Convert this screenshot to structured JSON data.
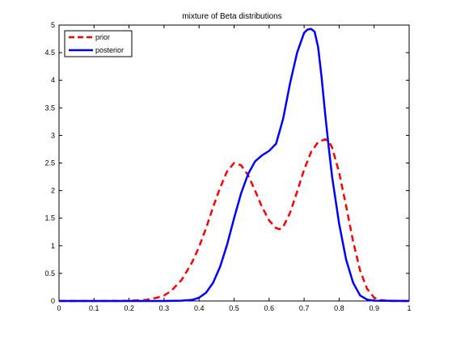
{
  "chart_data": {
    "type": "line",
    "title": "mixture of Beta distributions",
    "xlabel": "",
    "ylabel": "",
    "xlim": [
      0,
      1
    ],
    "ylim": [
      0,
      5
    ],
    "xticks": [
      0,
      0.1,
      0.2,
      0.3,
      0.4,
      0.5,
      0.6,
      0.7,
      0.8,
      0.9,
      1
    ],
    "xtick_labels": [
      "0",
      "0.1",
      "0.2",
      "0.3",
      "0.4",
      "0.5",
      "0.6",
      "0.7",
      "0.8",
      "0.9",
      "1"
    ],
    "yticks": [
      0,
      0.5,
      1,
      1.5,
      2,
      2.5,
      3,
      3.5,
      4,
      4.5,
      5
    ],
    "ytick_labels": [
      "0",
      "0.5",
      "1",
      "1.5",
      "2",
      "2.5",
      "3",
      "3.5",
      "4",
      "4.5",
      "5"
    ],
    "grid": false,
    "legend_position": "top-left",
    "series": [
      {
        "name": "prior",
        "color": "#ff0000",
        "style": "dashed",
        "x": [
          0,
          0.1,
          0.2,
          0.25,
          0.28,
          0.3,
          0.32,
          0.35,
          0.38,
          0.4,
          0.42,
          0.44,
          0.46,
          0.48,
          0.5,
          0.52,
          0.54,
          0.56,
          0.58,
          0.6,
          0.62,
          0.63,
          0.64,
          0.66,
          0.68,
          0.7,
          0.72,
          0.74,
          0.76,
          0.77,
          0.78,
          0.8,
          0.82,
          0.84,
          0.86,
          0.88,
          0.9,
          0.92,
          0.95,
          1
        ],
        "y": [
          0,
          0,
          0.004,
          0.02,
          0.06,
          0.1,
          0.18,
          0.38,
          0.7,
          0.98,
          1.32,
          1.7,
          2.05,
          2.35,
          2.5,
          2.46,
          2.28,
          2.0,
          1.7,
          1.46,
          1.32,
          1.3,
          1.34,
          1.6,
          1.98,
          2.38,
          2.7,
          2.88,
          2.93,
          2.9,
          2.78,
          2.33,
          1.72,
          1.08,
          0.55,
          0.22,
          0.06,
          0.015,
          0,
          0
        ]
      },
      {
        "name": "posterior",
        "color": "#0000ff",
        "style": "solid",
        "x": [
          0,
          0.3,
          0.35,
          0.38,
          0.4,
          0.42,
          0.44,
          0.46,
          0.48,
          0.5,
          0.52,
          0.54,
          0.56,
          0.58,
          0.6,
          0.62,
          0.64,
          0.66,
          0.68,
          0.7,
          0.71,
          0.72,
          0.73,
          0.74,
          0.75,
          0.76,
          0.77,
          0.78,
          0.8,
          0.82,
          0.84,
          0.86,
          0.88,
          0.9,
          1
        ],
        "y": [
          0,
          0,
          0.005,
          0.02,
          0.06,
          0.15,
          0.33,
          0.62,
          1.02,
          1.5,
          1.95,
          2.3,
          2.53,
          2.64,
          2.72,
          2.85,
          3.3,
          3.95,
          4.5,
          4.86,
          4.92,
          4.93,
          4.88,
          4.6,
          4.05,
          3.4,
          2.8,
          2.25,
          1.4,
          0.75,
          0.33,
          0.1,
          0.025,
          0.005,
          0
        ]
      }
    ]
  }
}
